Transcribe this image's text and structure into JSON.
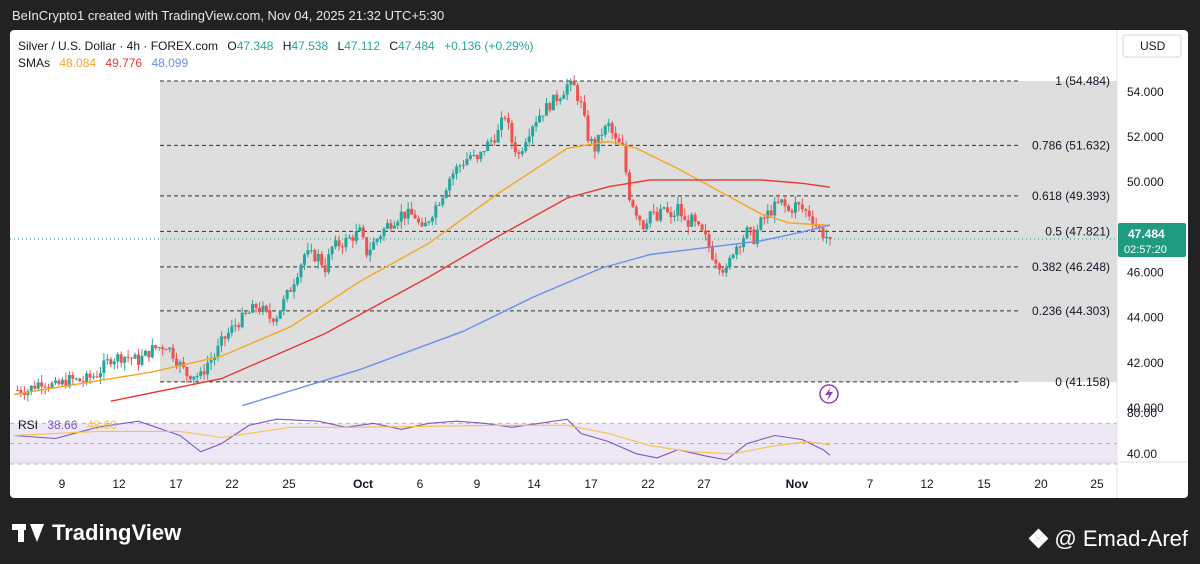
{
  "header": {
    "credit": "BeInCrypto1 created with TradingView.com, Nov 04, 2025 21:32 UTC+5:30"
  },
  "legend": {
    "symbol": "Silver / U.S. Dollar · 4h · FOREX.com",
    "o_label": "O",
    "o": "47.348",
    "h_label": "H",
    "h": "47.538",
    "l_label": "L",
    "l": "47.112",
    "c_label": "C",
    "c": "47.484",
    "change": "+0.136 (+0.29%)",
    "sma_label": "SMAs",
    "sma1": "48.084",
    "sma2": "49.776",
    "sma3": "48.099",
    "rsi_label": "RSI",
    "rsi1": "38.66",
    "rsi2": "48.60"
  },
  "currency": "USD",
  "price_tag": {
    "price": "47.484",
    "countdown": "02:57:20"
  },
  "footer": {
    "brand": "TradingView",
    "author": "@ Emad-Aref"
  },
  "colors": {
    "up": "#26a69a",
    "down": "#ef5350",
    "sma1": "#f5a623",
    "sma2": "#e53935",
    "sma3": "#6b8ef0",
    "rsi": "#7e57c2",
    "rsi_ma": "#f5c542",
    "fib_zone": "#dcdcdc",
    "rsi_band": "#ede7f6"
  },
  "chart_data": [
    {
      "type": "candlestick",
      "title": "Silver / U.S. Dollar · 4h · FOREX.com",
      "x_tick_labels": [
        "9",
        "12",
        "17",
        "22",
        "25",
        "Oct",
        "6",
        "9",
        "14",
        "17",
        "22",
        "27",
        "Nov",
        "7",
        "12",
        "15",
        "20",
        "25"
      ],
      "y_axis": {
        "ylim": [
          40.0,
          55.5
        ],
        "tick_labels": [
          "40.000",
          "42.000",
          "44.000",
          "46.000",
          "48.000",
          "50.000",
          "52.000",
          "54.000"
        ],
        "tick_values": [
          40,
          42,
          44,
          46,
          48,
          50,
          52,
          54
        ]
      },
      "last_price": 47.484,
      "fibonacci": {
        "levels": [
          {
            "label": "1 (54.484)",
            "value": 54.484
          },
          {
            "label": "0.786 (51.632)",
            "value": 51.632
          },
          {
            "label": "0.618 (49.393)",
            "value": 49.393
          },
          {
            "label": "0.5 (47.821)",
            "value": 47.821
          },
          {
            "label": "0.382 (46.248)",
            "value": 46.248
          },
          {
            "label": "0.236 (44.303)",
            "value": 44.303
          },
          {
            "label": "0 (41.158)",
            "value": 41.158
          }
        ]
      },
      "price_path": [
        [
          0,
          40.8
        ],
        [
          2,
          40.8
        ],
        [
          4,
          41.2
        ],
        [
          6,
          40.95
        ],
        [
          8,
          41.25
        ],
        [
          10,
          41.2
        ],
        [
          12,
          41.5
        ],
        [
          14,
          42.2
        ],
        [
          16,
          42.3
        ],
        [
          18,
          42.1
        ],
        [
          20,
          42.6
        ],
        [
          22,
          42.8
        ],
        [
          23,
          42.4
        ],
        [
          24,
          41.9
        ],
        [
          25,
          41.5
        ],
        [
          26,
          41.5
        ],
        [
          27,
          41.4
        ],
        [
          28,
          42.0
        ],
        [
          29,
          42.3
        ],
        [
          30,
          42.9
        ],
        [
          32,
          43.7
        ],
        [
          34,
          44.2
        ],
        [
          35,
          44.5
        ],
        [
          36,
          44.3
        ],
        [
          37,
          44.0
        ],
        [
          38,
          44.1
        ],
        [
          40,
          45.3
        ],
        [
          42,
          46.8
        ],
        [
          44,
          46.7
        ],
        [
          45,
          46.2
        ],
        [
          46,
          47.1
        ],
        [
          48,
          47.4
        ],
        [
          50,
          47.8
        ],
        [
          51,
          46.9
        ],
        [
          52,
          47.3
        ],
        [
          54,
          48.1
        ],
        [
          56,
          48.6
        ],
        [
          58,
          48.5
        ],
        [
          59,
          47.8
        ],
        [
          60,
          48.4
        ],
        [
          62,
          49.5
        ],
        [
          63,
          50.2
        ],
        [
          64,
          50.6
        ],
        [
          66,
          51.2
        ],
        [
          67,
          50.9
        ],
        [
          68,
          51.5
        ],
        [
          70,
          52.2
        ],
        [
          71,
          53.0
        ],
        [
          72,
          51.8
        ],
        [
          73,
          51.2
        ],
        [
          74,
          52.0
        ],
        [
          75,
          52.6
        ],
        [
          76,
          53.0
        ],
        [
          77,
          53.3
        ],
        [
          78,
          53.6
        ],
        [
          79,
          53.9
        ],
        [
          80,
          54.3
        ],
        [
          81,
          54.2
        ],
        [
          82,
          53.4
        ],
        [
          83,
          52.0
        ],
        [
          84,
          51.5
        ],
        [
          85,
          52.2
        ],
        [
          86,
          52.5
        ],
        [
          87,
          51.8
        ],
        [
          88,
          51.5
        ],
        [
          89,
          49.4
        ],
        [
          90,
          48.7
        ],
        [
          91,
          48.1
        ],
        [
          92,
          48.7
        ],
        [
          93,
          48.3
        ],
        [
          94,
          48.9
        ],
        [
          95,
          48.3
        ],
        [
          96,
          48.9
        ],
        [
          97,
          48.2
        ],
        [
          98,
          48.3
        ],
        [
          99,
          47.9
        ],
        [
          100,
          47.5
        ],
        [
          101,
          46.8
        ],
        [
          102,
          46.4
        ],
        [
          103,
          46.0
        ],
        [
          104,
          47.0
        ],
        [
          105,
          47.4
        ],
        [
          106,
          47.8
        ],
        [
          107,
          47.5
        ],
        [
          108,
          48.2
        ],
        [
          109,
          48.6
        ],
        [
          110,
          48.9
        ],
        [
          111,
          49.1
        ],
        [
          112,
          48.7
        ],
        [
          113,
          49.0
        ],
        [
          114,
          48.8
        ],
        [
          115,
          48.6
        ],
        [
          116,
          48.1
        ],
        [
          117,
          47.7
        ],
        [
          118,
          47.484
        ]
      ],
      "sma_lines": [
        {
          "name": "SMA 48.084",
          "points": [
            [
              0,
              40.6
            ],
            [
              20,
              41.6
            ],
            [
              30,
              42.3
            ],
            [
              40,
              43.6
            ],
            [
              50,
              45.6
            ],
            [
              60,
              47.3
            ],
            [
              70,
              49.5
            ],
            [
              80,
              51.5
            ],
            [
              86,
              51.8
            ],
            [
              90,
              51.5
            ],
            [
              96,
              50.6
            ],
            [
              102,
              49.6
            ],
            [
              108,
              48.6
            ],
            [
              112,
              48.2
            ],
            [
              118,
              48.08
            ]
          ]
        },
        {
          "name": "SMA 49.776",
          "points": [
            [
              14,
              40.3
            ],
            [
              30,
              41.3
            ],
            [
              45,
              43.3
            ],
            [
              60,
              45.8
            ],
            [
              70,
              47.6
            ],
            [
              80,
              49.3
            ],
            [
              86,
              49.8
            ],
            [
              92,
              50.1
            ],
            [
              100,
              50.1
            ],
            [
              108,
              50.1
            ],
            [
              114,
              49.95
            ],
            [
              118,
              49.78
            ]
          ]
        },
        {
          "name": "SMA 48.099",
          "points": [
            [
              33,
              40.1
            ],
            [
              50,
              41.7
            ],
            [
              65,
              43.4
            ],
            [
              75,
              44.9
            ],
            [
              85,
              46.2
            ],
            [
              92,
              46.8
            ],
            [
              100,
              47.1
            ],
            [
              108,
              47.4
            ],
            [
              114,
              47.8
            ],
            [
              118,
              48.1
            ]
          ]
        }
      ]
    },
    {
      "type": "line",
      "title": "RSI",
      "ylim": [
        30,
        85
      ],
      "y_tick_labels": [
        "80.00",
        "40.00"
      ],
      "y_tick_values": [
        80,
        40
      ],
      "series": [
        {
          "name": "RSI 38.66",
          "points": [
            [
              0,
              58
            ],
            [
              6,
              55
            ],
            [
              12,
              66
            ],
            [
              18,
              72
            ],
            [
              24,
              58
            ],
            [
              27,
              42
            ],
            [
              30,
              50
            ],
            [
              34,
              68
            ],
            [
              38,
              74
            ],
            [
              44,
              72
            ],
            [
              48,
              66
            ],
            [
              52,
              70
            ],
            [
              56,
              64
            ],
            [
              60,
              70
            ],
            [
              64,
              72
            ],
            [
              68,
              70
            ],
            [
              72,
              66
            ],
            [
              76,
              70
            ],
            [
              80,
              74
            ],
            [
              82,
              60
            ],
            [
              86,
              52
            ],
            [
              90,
              40
            ],
            [
              93,
              36
            ],
            [
              96,
              44
            ],
            [
              100,
              38
            ],
            [
              103,
              34
            ],
            [
              106,
              50
            ],
            [
              110,
              58
            ],
            [
              114,
              54
            ],
            [
              117,
              44
            ],
            [
              118,
              38.66
            ]
          ]
        },
        {
          "name": "RSI MA 48.60",
          "points": [
            [
              0,
              58
            ],
            [
              12,
              62
            ],
            [
              24,
              62
            ],
            [
              30,
              56
            ],
            [
              40,
              66
            ],
            [
              50,
              66
            ],
            [
              60,
              67
            ],
            [
              70,
              68
            ],
            [
              80,
              68
            ],
            [
              86,
              60
            ],
            [
              92,
              48
            ],
            [
              98,
              42
            ],
            [
              104,
              40
            ],
            [
              110,
              48
            ],
            [
              115,
              52
            ],
            [
              118,
              48.6
            ]
          ]
        }
      ]
    }
  ]
}
